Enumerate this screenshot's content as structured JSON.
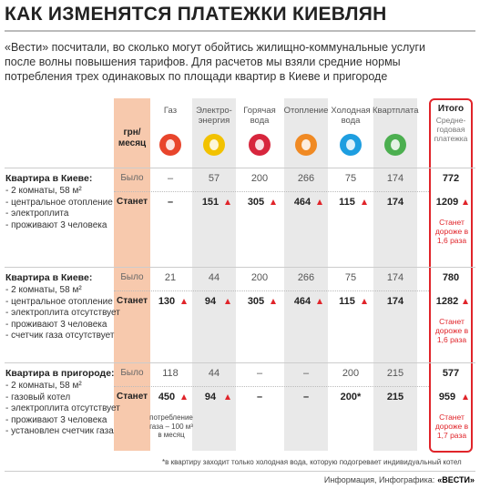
{
  "header": {
    "title": "КАК ИЗМЕНЯТСЯ ПЛАТЕЖКИ КИЕВЛЯН",
    "intro": [
      "«Вести» посчитали, во сколько могут обойтись жилищно-коммунальные услуги",
      "после волны повышения тарифов. Для расчетов мы взяли средние нормы",
      "потребления трех одинаковых по площади квартир в Киеве и пригороде"
    ]
  },
  "table": {
    "unit": "грн/ месяц",
    "columns": [
      "Газ",
      "Электро-энергия",
      "Горячая вода",
      "Отопление",
      "Холодная вода",
      "Квартплата"
    ],
    "total": {
      "label": "Итого",
      "sublabel": "Средне-годовая платежка"
    },
    "blocks": [
      {
        "title": "Квартира в Киеве:",
        "details": [
          "- 2 комнаты, 58 м²",
          "- центральное отопление",
          "- электроплита",
          "- проживают 3 человека"
        ],
        "rows": [
          {
            "label": "Было",
            "values": [
              "–",
              "57",
              "200",
              "266",
              "75",
              "174"
            ],
            "total": "772"
          },
          {
            "label": "Станет",
            "values": [
              "–",
              "151",
              "305",
              "464",
              "115",
              "174"
            ],
            "total": "1209"
          }
        ],
        "note": "Станет дороже в 1,6 раза"
      },
      {
        "title": "Квартира в Киеве:",
        "details": [
          "- 2 комнаты, 58 м²",
          "- центральное отопление",
          "- электроплита отсутствует",
          "- проживают 3 человека",
          "- счетчик газа отсутствует"
        ],
        "rows": [
          {
            "label": "Было",
            "values": [
              "21",
              "44",
              "200",
              "266",
              "75",
              "174"
            ],
            "total": "780"
          },
          {
            "label": "Станет",
            "values": [
              "130",
              "94",
              "305",
              "464",
              "115",
              "174"
            ],
            "total": "1282"
          }
        ],
        "note": "Станет дороже в 1,6 раза"
      },
      {
        "title": "Квартира в пригороде:",
        "details": [
          "- 2 комнаты, 58 м²",
          "- газовый котел",
          "- электроплита отсутствует",
          "- проживают 3 человека",
          "- установлен счетчик газа"
        ],
        "rows": [
          {
            "label": "Было",
            "values": [
              "118",
              "44",
              "–",
              "–",
              "200",
              "215"
            ],
            "total": "577"
          },
          {
            "label": "Станет",
            "values": [
              "450",
              "94",
              "–",
              "–",
              "200*",
              "215"
            ],
            "total": "959"
          }
        ],
        "note": "Станет дороже в 1,7 раза",
        "gas_note": "потребление газа – 100 м³ в месяц"
      }
    ]
  },
  "footnote": "*в квартиру заходит только холодная вода, которую подогревает индивидуальный котел",
  "source": {
    "label": "Информация, Инфографика:",
    "brand": "«ВЕСТИ»"
  }
}
